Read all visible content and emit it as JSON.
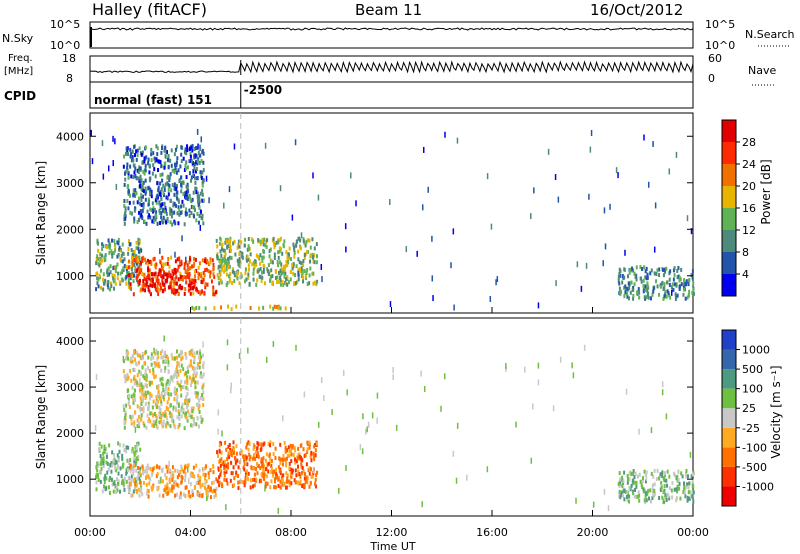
{
  "header": {
    "station": "Halley (fitACF)",
    "beam": "Beam 11",
    "date": "16/Oct/2012"
  },
  "params": {
    "nsky_label": "N.Sky",
    "nsky_ticks": [
      "10^5",
      "10^0"
    ],
    "nsearch_label": "N.Search",
    "freq_label_1": "Freq.",
    "freq_label_2": "[MHz]",
    "freq_ticks": [
      "18",
      "8"
    ],
    "nave_label": "Nave",
    "nave_ticks": [
      "60",
      "0"
    ],
    "cpid_label": "CPID",
    "cpid_mode": "normal (fast) 151",
    "cpid_change": "-2500",
    "cpid_change_hour": 6
  },
  "colors": {
    "power_scale": [
      "#0000ee",
      "#2255aa",
      "#4e8a7a",
      "#5fb354",
      "#e8b400",
      "#f07000",
      "#ff2a00",
      "#e00000"
    ],
    "velocity_scale": [
      "#ee0000",
      "#ff3000",
      "#ff7000",
      "#ffaa22",
      "#c8c8c8",
      "#6dc040",
      "#4e9a80",
      "#3366aa",
      "#2040c8"
    ]
  },
  "chart_data": [
    {
      "type": "heatmap",
      "panel": "power",
      "ylabel": "Slant Range [km]",
      "ylim": [
        200,
        4500
      ],
      "yticks": [
        "1000",
        "2000",
        "3000",
        "4000"
      ],
      "xlim": [
        0,
        24
      ],
      "colorbar_label": "Power [dB]",
      "colorbar_ticks": [
        "4",
        "8",
        "12",
        "16",
        "20",
        "24",
        "28"
      ],
      "colorbar_range": [
        0,
        32
      ],
      "regions": [
        {
          "t": [
            0.2,
            2.0
          ],
          "r": [
            700,
            1800
          ],
          "level": 10
        },
        {
          "t": [
            1.5,
            5.0
          ],
          "r": [
            600,
            1400
          ],
          "level": 22
        },
        {
          "t": [
            2.2,
            4.2
          ],
          "r": [
            650,
            1050
          ],
          "level": 28
        },
        {
          "t": [
            5.0,
            9.0
          ],
          "r": [
            800,
            1800
          ],
          "level": 12
        },
        {
          "t": [
            1.3,
            4.5
          ],
          "r": [
            2100,
            3800
          ],
          "level": 6
        },
        {
          "t": [
            21.0,
            24.0
          ],
          "r": [
            500,
            1200
          ],
          "level": 8
        },
        {
          "t": [
            4.0,
            8.0
          ],
          "r": [
            280,
            340
          ],
          "level": 16
        }
      ]
    },
    {
      "type": "heatmap",
      "panel": "velocity",
      "ylabel": "Slant Range [km]",
      "ylim": [
        200,
        4500
      ],
      "yticks": [
        "1000",
        "2000",
        "3000",
        "4000"
      ],
      "xlim": [
        0,
        24
      ],
      "xticks": [
        "00:00",
        "04:00",
        "08:00",
        "12:00",
        "16:00",
        "20:00",
        "00:00"
      ],
      "xlabel": "Time UT",
      "colorbar_label": "Velocity [m s⁻¹]",
      "colorbar_ticks": [
        "-1000",
        "-500",
        "-100",
        "-25",
        "25",
        "100",
        "500",
        "1000"
      ],
      "regions": [
        {
          "t": [
            0.2,
            2.0
          ],
          "r": [
            700,
            1800
          ],
          "level": 5
        },
        {
          "t": [
            1.5,
            5.0
          ],
          "r": [
            600,
            1300
          ],
          "level": 3
        },
        {
          "t": [
            5.0,
            9.0
          ],
          "r": [
            800,
            1800
          ],
          "level": 2
        },
        {
          "t": [
            1.3,
            4.5
          ],
          "r": [
            2100,
            3800
          ],
          "level": 4
        },
        {
          "t": [
            21.0,
            24.0
          ],
          "r": [
            500,
            1200
          ],
          "level": 5
        }
      ]
    }
  ]
}
